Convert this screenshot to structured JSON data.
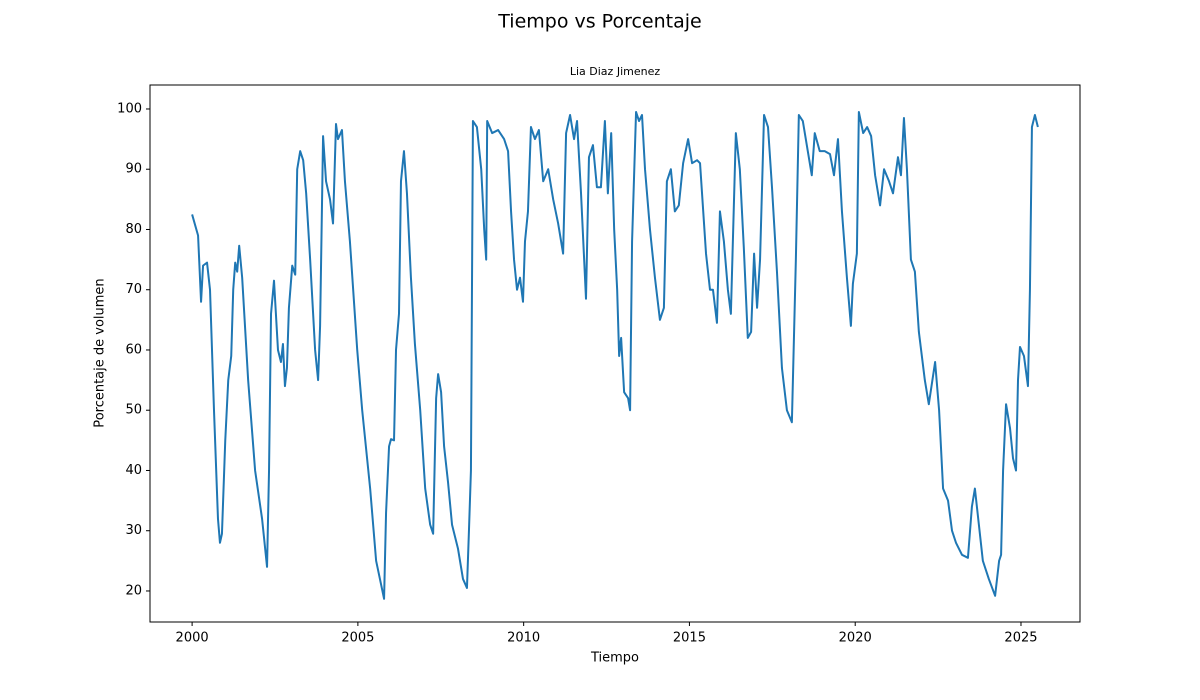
{
  "chart_data": {
    "type": "line",
    "title": "Tiempo vs Porcentaje",
    "subtitle": "Lia Diaz Jimenez",
    "x_label": "Tiempo",
    "y_label": "Porcentaje de volumen",
    "color": "#1f77b4",
    "grid": false,
    "xlim": [
      1998.73,
      2026.78
    ],
    "ylim": [
      14.85,
      103.98
    ],
    "xticks": [
      2000,
      2005,
      2010,
      2015,
      2020,
      2025
    ],
    "yticks": [
      20,
      30,
      40,
      50,
      60,
      70,
      80,
      90,
      100
    ],
    "x": [
      2000.0,
      2000.18,
      2000.27,
      2000.33,
      2000.45,
      2000.54,
      2000.66,
      2000.78,
      2000.84,
      2000.9,
      2001.0,
      2001.09,
      2001.18,
      2001.24,
      2001.3,
      2001.36,
      2001.42,
      2001.51,
      2001.69,
      2001.9,
      2002.11,
      2002.26,
      2002.32,
      2002.38,
      2002.47,
      2002.59,
      2002.68,
      2002.74,
      2002.8,
      2002.86,
      2002.92,
      2003.02,
      2003.11,
      2003.17,
      2003.26,
      2003.35,
      2003.44,
      2003.56,
      2003.71,
      2003.8,
      2003.86,
      2003.95,
      2004.04,
      2004.16,
      2004.25,
      2004.34,
      2004.4,
      2004.52,
      2004.61,
      2004.76,
      2004.98,
      2005.13,
      2005.37,
      2005.55,
      2005.79,
      2005.85,
      2005.94,
      2006.0,
      2006.09,
      2006.15,
      2006.24,
      2006.3,
      2006.39,
      2006.48,
      2006.6,
      2006.72,
      2006.88,
      2007.03,
      2007.18,
      2007.27,
      2007.36,
      2007.42,
      2007.51,
      2007.6,
      2007.72,
      2007.84,
      2008.02,
      2008.17,
      2008.29,
      2008.35,
      2008.41,
      2008.47,
      2008.59,
      2008.72,
      2008.81,
      2008.87,
      2008.9,
      2009.05,
      2009.23,
      2009.41,
      2009.53,
      2009.62,
      2009.71,
      2009.8,
      2009.89,
      2009.98,
      2010.04,
      2010.13,
      2010.22,
      2010.34,
      2010.46,
      2010.59,
      2010.74,
      2010.89,
      2011.04,
      2011.19,
      2011.28,
      2011.4,
      2011.52,
      2011.61,
      2011.73,
      2011.88,
      2011.97,
      2012.09,
      2012.21,
      2012.33,
      2012.45,
      2012.54,
      2012.64,
      2012.73,
      2012.82,
      2012.88,
      2012.94,
      2013.03,
      2013.15,
      2013.21,
      2013.27,
      2013.39,
      2013.48,
      2013.57,
      2013.66,
      2013.81,
      2013.96,
      2014.11,
      2014.23,
      2014.32,
      2014.44,
      2014.56,
      2014.68,
      2014.81,
      2014.96,
      2015.08,
      2015.23,
      2015.32,
      2015.5,
      2015.62,
      2015.71,
      2015.83,
      2015.92,
      2016.04,
      2016.16,
      2016.25,
      2016.4,
      2016.52,
      2016.64,
      2016.76,
      2016.86,
      2016.95,
      2017.04,
      2017.13,
      2017.25,
      2017.37,
      2017.49,
      2017.64,
      2017.79,
      2017.94,
      2018.09,
      2018.21,
      2018.3,
      2018.42,
      2018.57,
      2018.69,
      2018.78,
      2018.93,
      2019.08,
      2019.24,
      2019.36,
      2019.48,
      2019.6,
      2019.75,
      2019.87,
      2019.93,
      2020.05,
      2020.11,
      2020.24,
      2020.36,
      2020.48,
      2020.6,
      2020.75,
      2020.87,
      2021.02,
      2021.14,
      2021.29,
      2021.38,
      2021.47,
      2021.56,
      2021.68,
      2021.8,
      2021.92,
      2022.1,
      2022.22,
      2022.41,
      2022.53,
      2022.65,
      2022.8,
      2022.92,
      2023.04,
      2023.22,
      2023.4,
      2023.52,
      2023.61,
      2023.73,
      2023.85,
      2024.03,
      2024.22,
      2024.34,
      2024.4,
      2024.46,
      2024.55,
      2024.67,
      2024.76,
      2024.85,
      2024.91,
      2024.97,
      2025.09,
      2025.21,
      2025.27,
      2025.33,
      2025.42,
      2025.51
    ],
    "values": [
      82.5,
      79,
      68,
      74,
      74.5,
      70,
      50,
      32,
      28,
      29.5,
      45,
      55,
      59,
      70,
      74.5,
      73,
      77.3,
      72,
      55,
      40,
      32,
      24,
      40,
      66,
      71.5,
      60,
      58,
      61,
      54,
      57,
      67,
      74,
      72.5,
      90,
      93,
      91.5,
      86,
      75,
      60,
      55,
      64,
      95.5,
      88,
      85,
      81,
      97.5,
      95,
      96.5,
      88,
      78,
      60,
      50,
      37,
      25,
      18.7,
      33,
      44,
      45.2,
      45,
      60,
      66,
      88,
      93,
      86,
      72,
      61,
      50,
      37,
      31,
      29.5,
      52,
      56,
      53,
      44,
      38,
      31,
      27,
      22,
      20.5,
      30,
      40,
      98,
      97,
      90,
      80,
      75,
      98,
      96,
      96.5,
      95,
      93,
      83,
      75,
      70,
      72,
      68,
      78,
      83,
      97,
      95,
      96.5,
      88,
      90,
      85,
      81,
      76,
      96,
      99,
      95,
      98,
      86,
      68.5,
      92,
      94,
      87,
      87,
      98,
      86,
      96,
      80,
      70,
      59,
      62,
      53,
      52,
      50,
      78,
      99.5,
      98,
      99,
      90,
      80,
      72,
      65,
      67,
      88,
      90,
      83,
      84,
      91,
      95,
      91,
      91.5,
      91,
      76,
      70,
      70,
      64.5,
      83,
      78,
      70,
      66,
      96,
      90,
      77,
      62,
      63,
      76,
      67,
      75,
      99,
      97,
      87,
      73,
      57,
      50,
      48,
      75,
      99,
      98,
      93,
      89,
      96,
      93,
      93,
      92.5,
      89,
      95,
      83,
      72,
      64,
      71,
      76,
      99.5,
      96,
      97,
      95.5,
      89,
      84,
      90,
      88,
      86,
      92,
      89,
      98.5,
      90,
      75,
      73,
      63,
      55,
      51,
      58,
      50,
      37,
      35,
      30,
      28,
      26,
      25.5,
      34,
      37,
      31,
      25,
      22,
      19.2,
      25,
      26,
      40,
      51,
      47,
      42,
      40,
      55,
      60.5,
      59,
      54,
      70,
      97,
      99,
      97
    ]
  }
}
